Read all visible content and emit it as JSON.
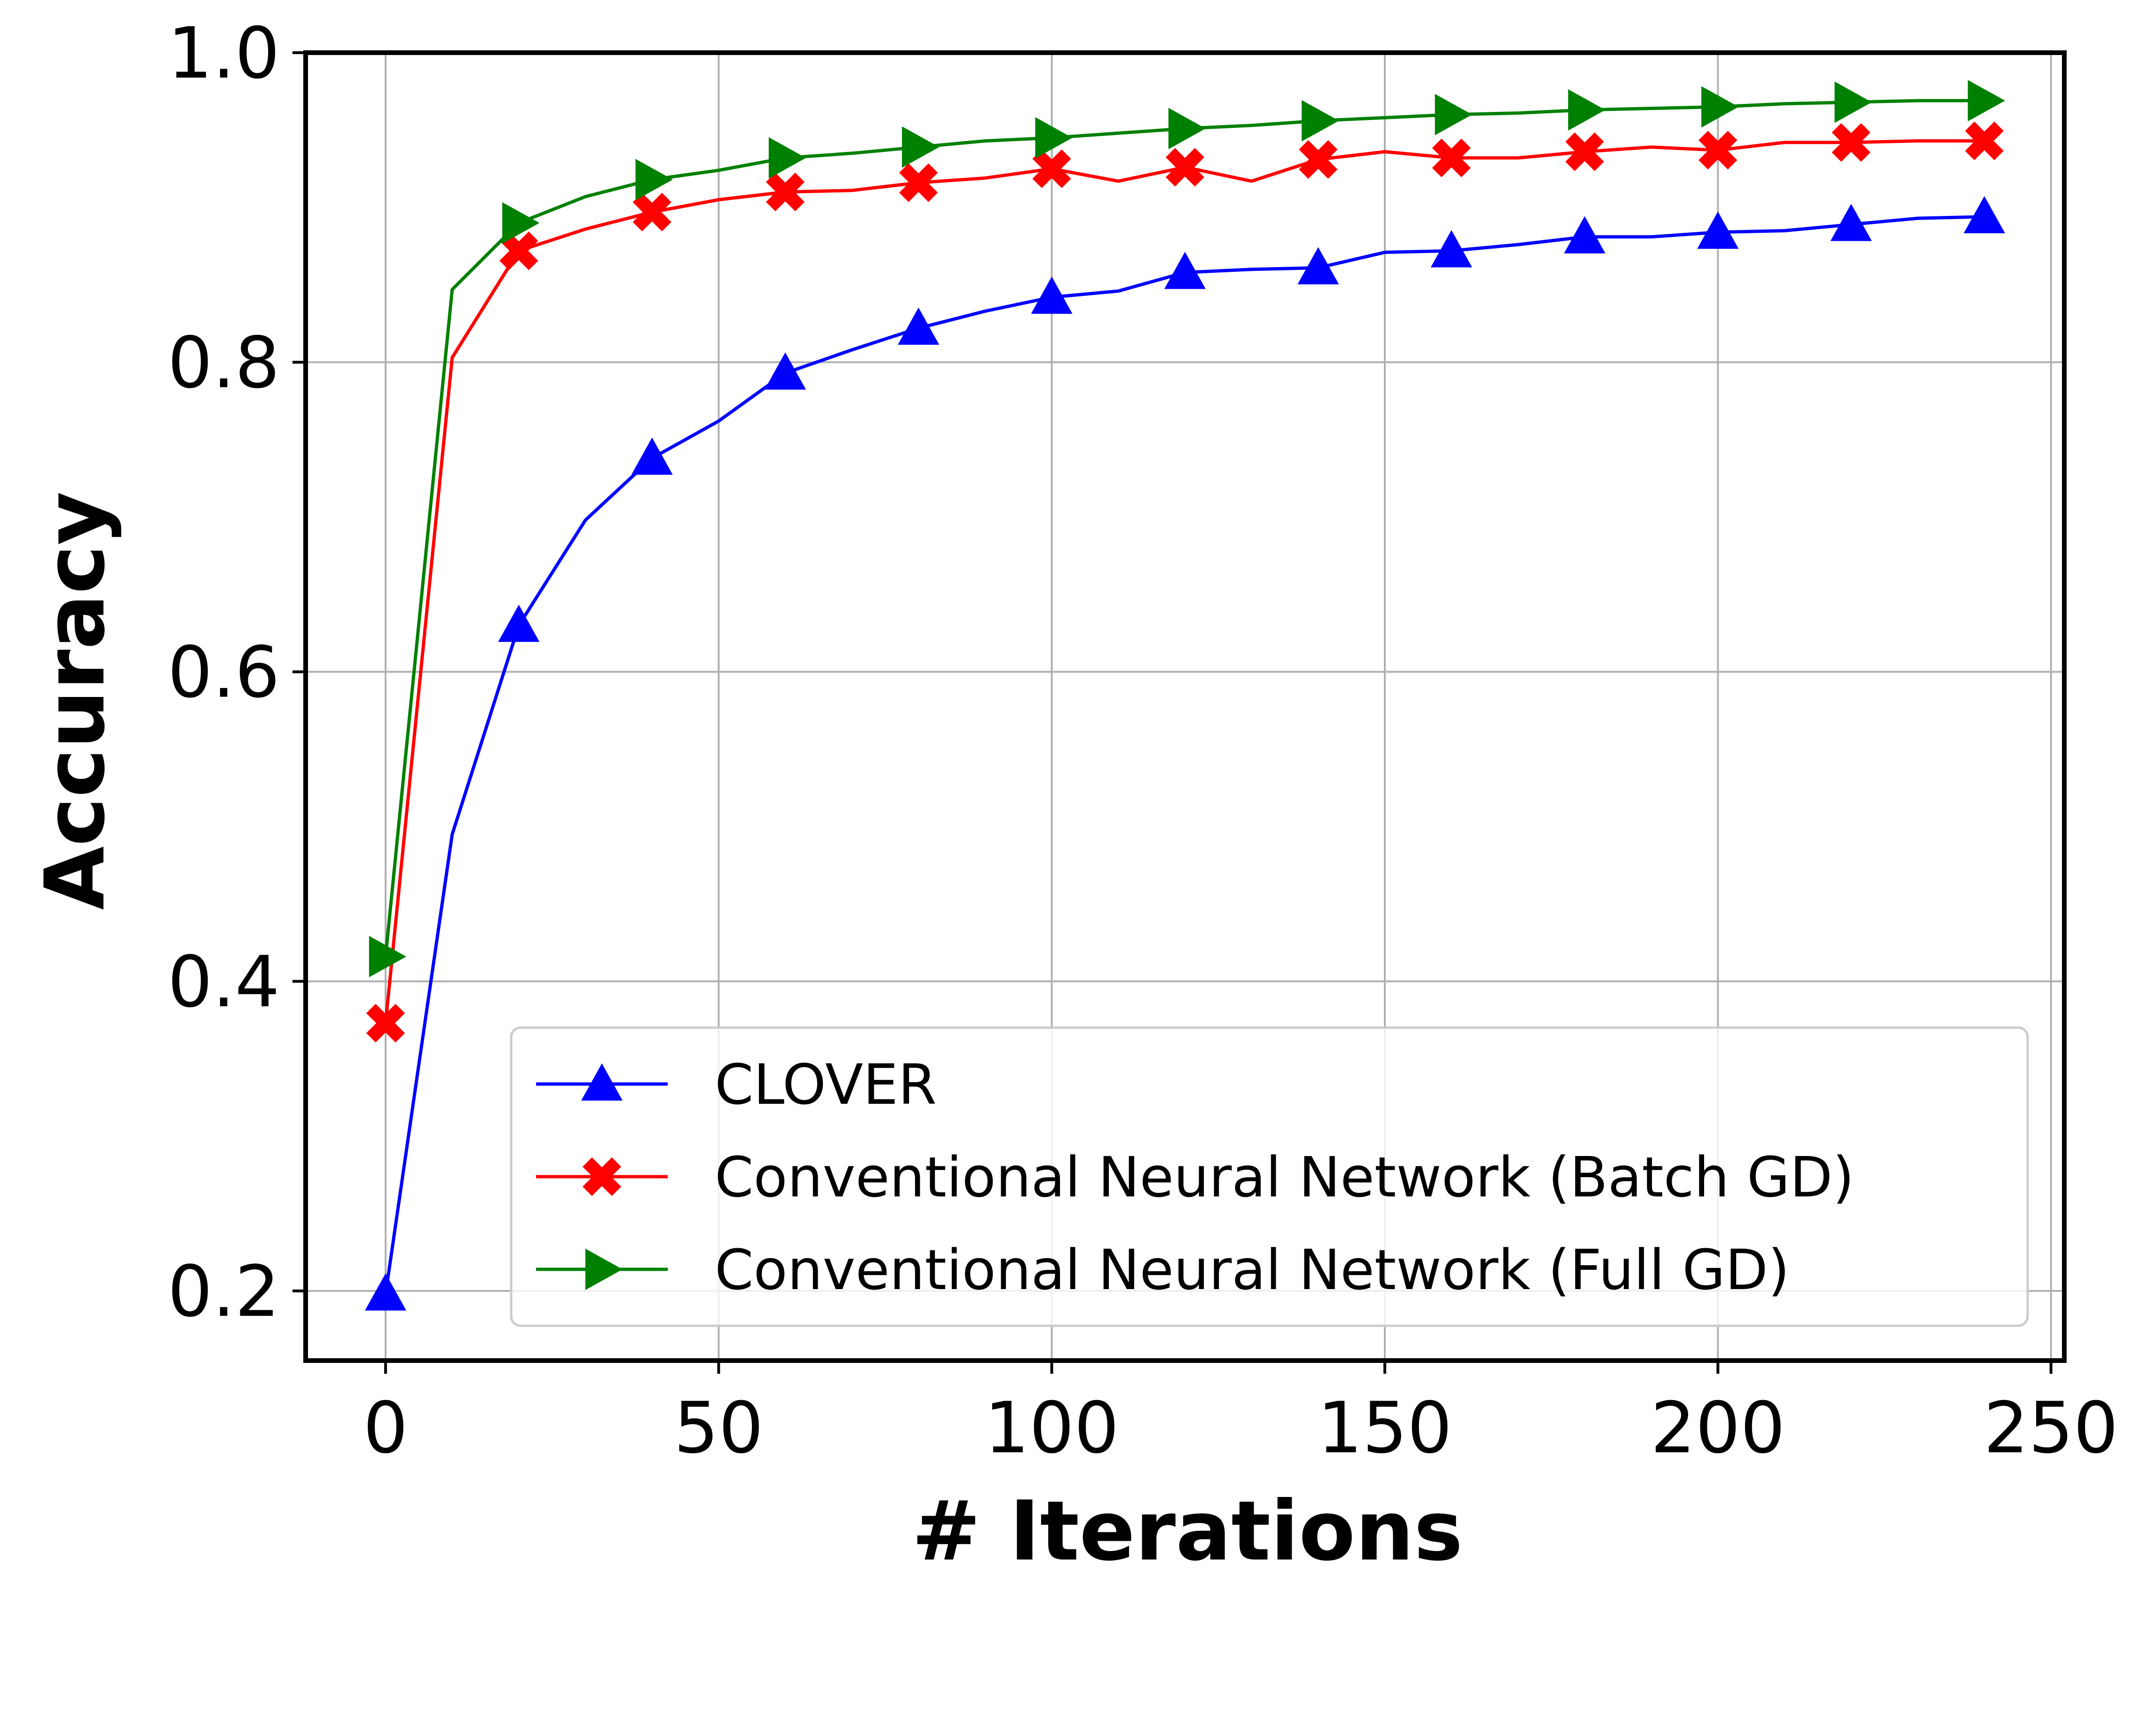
{
  "chart_data": {
    "type": "line",
    "title": "",
    "xlabel": "# Iterations",
    "ylabel": "Accuracy",
    "xlim": [
      -12,
      252
    ],
    "ylim": [
      0.155,
      1.0
    ],
    "xticks": [
      0,
      50,
      100,
      150,
      200,
      250
    ],
    "xtick_labels": [
      "0",
      "50",
      "100",
      "150",
      "200",
      "250"
    ],
    "yticks": [
      0.2,
      0.4,
      0.6,
      0.8,
      1.0
    ],
    "ytick_labels": [
      "0.2",
      "0.4",
      "0.6",
      "0.8",
      "1.0"
    ],
    "grid": true,
    "legend_position": "lower right",
    "x": [
      0,
      10,
      20,
      30,
      40,
      50,
      60,
      70,
      80,
      90,
      100,
      110,
      120,
      130,
      140,
      150,
      160,
      170,
      180,
      190,
      200,
      210,
      220,
      230,
      240
    ],
    "marker_every": 2,
    "series": [
      {
        "name": "CLOVER",
        "color": "#0000ff",
        "marker": "triangle-up",
        "values": [
          0.198,
          0.495,
          0.63,
          0.698,
          0.738,
          0.762,
          0.793,
          0.808,
          0.822,
          0.833,
          0.842,
          0.846,
          0.858,
          0.86,
          0.861,
          0.871,
          0.872,
          0.876,
          0.881,
          0.881,
          0.884,
          0.885,
          0.889,
          0.893,
          0.894
        ]
      },
      {
        "name": "Conventional Neural Network (Batch GD)",
        "color": "#ff0000",
        "marker": "x-filled",
        "values": [
          0.373,
          0.803,
          0.872,
          0.886,
          0.897,
          0.905,
          0.91,
          0.911,
          0.916,
          0.919,
          0.925,
          0.917,
          0.926,
          0.917,
          0.931,
          0.936,
          0.932,
          0.932,
          0.936,
          0.939,
          0.937,
          0.942,
          0.942,
          0.943,
          0.943
        ]
      },
      {
        "name": "Conventional Neural Network (Full GD)",
        "color": "#008000",
        "marker": "triangle-right",
        "values": [
          0.416,
          0.847,
          0.89,
          0.907,
          0.918,
          0.924,
          0.932,
          0.935,
          0.939,
          0.943,
          0.945,
          0.948,
          0.951,
          0.953,
          0.956,
          0.958,
          0.96,
          0.961,
          0.963,
          0.964,
          0.965,
          0.967,
          0.968,
          0.969,
          0.969
        ]
      }
    ]
  }
}
